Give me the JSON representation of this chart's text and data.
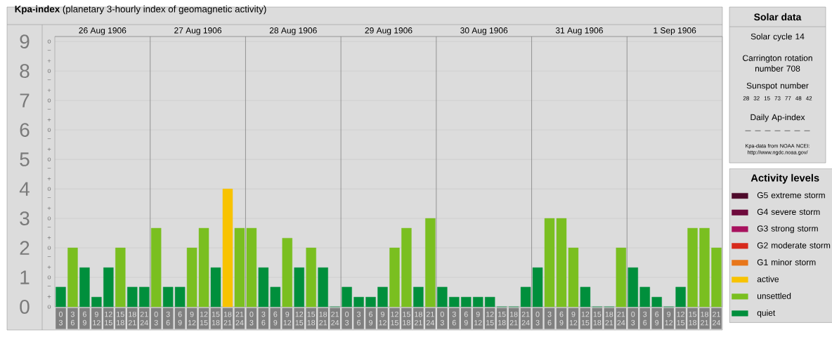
{
  "chart_data": [
    {
      "type": "bar",
      "title": "**Kpa-index**  (planetary 3-hourly index of geomagnetic activity)",
      "categories": [
        "0 3",
        "3 6",
        "6 9",
        "9 12",
        "12 15",
        "15 18",
        "18 21",
        "21 24",
        "0 3",
        "3 6",
        "6 9",
        "9 12",
        "12 15",
        "15 18",
        "18 21",
        "21 24",
        "0 3",
        "3 6",
        "6 9",
        "9 12",
        "12 15",
        "15 18",
        "18 21",
        "21 24",
        "0 3",
        "3 6",
        "6 9",
        "9 12",
        "12 15",
        "15 18",
        "18 21",
        "21 24",
        "0 3",
        "3 6",
        "6 9",
        "9 12",
        "12 15",
        "15 18",
        "18 21",
        "21 24",
        "0 3",
        "3 6",
        "6 9",
        "9 12",
        "12 15",
        "15 18",
        "18 21",
        "21 24",
        "0 3",
        "3 6",
        "6 9",
        "9 12",
        "12 15",
        "15 18",
        "18 21",
        "21 24"
      ],
      "series": [
        {
          "name": "G5 extreme storm",
          "color": "#4d0a2a",
          "values": [
            null,
            null,
            null,
            null,
            null,
            null,
            null,
            null,
            null,
            null,
            null,
            null,
            null,
            null,
            null,
            null,
            null,
            null,
            null,
            null,
            null,
            null,
            null,
            null,
            null,
            null,
            null,
            null,
            null,
            null,
            null,
            null,
            null,
            null,
            null,
            null,
            null,
            null,
            null,
            null,
            null,
            null,
            null,
            null,
            null,
            null,
            null,
            null,
            null,
            null,
            null,
            null,
            null,
            null,
            null,
            null
          ]
        },
        {
          "name": "G4 severe storm",
          "color": "#6e0a3c",
          "values": [
            null,
            null,
            null,
            null,
            null,
            null,
            null,
            null,
            null,
            null,
            null,
            null,
            null,
            null,
            null,
            null,
            null,
            null,
            null,
            null,
            null,
            null,
            null,
            null,
            null,
            null,
            null,
            null,
            null,
            null,
            null,
            null,
            null,
            null,
            null,
            null,
            null,
            null,
            null,
            null,
            null,
            null,
            null,
            null,
            null,
            null,
            null,
            null,
            null,
            null,
            null,
            null,
            null,
            null,
            null,
            null
          ]
        },
        {
          "name": "G3 strong storm",
          "color": "#a8125e",
          "values": [
            null,
            null,
            null,
            null,
            null,
            null,
            null,
            null,
            null,
            null,
            null,
            null,
            null,
            null,
            null,
            null,
            null,
            null,
            null,
            null,
            null,
            null,
            null,
            null,
            null,
            null,
            null,
            null,
            null,
            null,
            null,
            null,
            null,
            null,
            null,
            null,
            null,
            null,
            null,
            null,
            null,
            null,
            null,
            null,
            null,
            null,
            null,
            null,
            null,
            null,
            null,
            null,
            null,
            null,
            null,
            null
          ]
        },
        {
          "name": "G2 moderate storm",
          "color": "#d72a1c",
          "values": [
            null,
            null,
            null,
            null,
            null,
            null,
            null,
            null,
            null,
            null,
            null,
            null,
            null,
            null,
            null,
            null,
            null,
            null,
            null,
            null,
            null,
            null,
            null,
            null,
            null,
            null,
            null,
            null,
            null,
            null,
            null,
            null,
            null,
            null,
            null,
            null,
            null,
            null,
            null,
            null,
            null,
            null,
            null,
            null,
            null,
            null,
            null,
            null,
            null,
            null,
            null,
            null,
            null,
            null,
            null,
            null
          ]
        },
        {
          "name": "G1 minor storm",
          "color": "#e8761a",
          "values": [
            null,
            null,
            null,
            null,
            null,
            null,
            null,
            null,
            null,
            null,
            null,
            null,
            null,
            null,
            null,
            null,
            null,
            null,
            null,
            null,
            null,
            null,
            null,
            null,
            null,
            null,
            null,
            null,
            null,
            null,
            null,
            null,
            null,
            null,
            null,
            null,
            null,
            null,
            null,
            null,
            null,
            null,
            null,
            null,
            null,
            null,
            null,
            null,
            null,
            null,
            null,
            null,
            null,
            null,
            null,
            null
          ]
        },
        {
          "name": "active",
          "color": "#f8c300",
          "values": [
            null,
            null,
            null,
            null,
            null,
            null,
            null,
            null,
            null,
            null,
            null,
            null,
            null,
            null,
            4,
            null,
            null,
            null,
            null,
            null,
            null,
            null,
            null,
            null,
            null,
            null,
            null,
            null,
            null,
            null,
            null,
            null,
            null,
            null,
            null,
            null,
            null,
            null,
            null,
            null,
            null,
            null,
            null,
            null,
            null,
            null,
            null,
            null,
            null,
            null,
            null,
            null,
            null,
            null,
            null,
            null
          ]
        },
        {
          "name": "unsettled",
          "color": "#7abf20",
          "values": [
            null,
            2,
            null,
            null,
            null,
            2,
            null,
            null,
            2.67,
            null,
            null,
            2,
            2.67,
            null,
            null,
            2.67,
            2.67,
            null,
            null,
            2.33,
            null,
            2,
            null,
            null,
            null,
            null,
            null,
            null,
            2,
            2.67,
            null,
            3,
            null,
            null,
            null,
            null,
            null,
            null,
            null,
            null,
            null,
            3,
            3,
            2,
            null,
            null,
            null,
            2,
            null,
            null,
            null,
            null,
            null,
            2.67,
            2.67,
            2
          ]
        },
        {
          "name": "quiet",
          "color": "#008f3c",
          "values": [
            0.67,
            null,
            1.33,
            0.33,
            1.33,
            null,
            0.67,
            0.67,
            null,
            0.67,
            0.67,
            null,
            null,
            1.33,
            null,
            null,
            null,
            1.33,
            0.67,
            null,
            1.33,
            null,
            1.33,
            0,
            0.67,
            0.33,
            0.33,
            0.67,
            null,
            null,
            0.67,
            null,
            0.67,
            0.33,
            0.33,
            0.33,
            0.33,
            0,
            0,
            0.67,
            1.33,
            null,
            null,
            null,
            0.67,
            0,
            0,
            null,
            1.33,
            0.67,
            0.33,
            0,
            0.67,
            null,
            null,
            null
          ]
        }
      ],
      "ylim": [
        0,
        9.17
      ],
      "yticks": [
        0,
        1,
        2,
        3,
        4,
        5,
        6,
        7,
        8,
        9
      ],
      "annotations": [
        "o",
        "+",
        "−",
        "o",
        "+",
        "−",
        "o",
        "+",
        "−",
        "o",
        "+",
        "−",
        "o",
        "+",
        "−",
        "o",
        "+",
        "−",
        "o",
        "+",
        "−",
        "o",
        "+",
        "−",
        "o",
        "+",
        "−",
        "o"
      ],
      "x2lim": [
        "1906-08-26",
        "1906-09-02"
      ],
      "x2ticks": [
        {
          "value": "1906-08-26T12:00",
          "label": "26 Aug 1906"
        },
        {
          "value": "1906-08-27",
          "label": null
        },
        {
          "value": "1906-08-27T12:00",
          "label": "27 Aug 1906"
        },
        {
          "value": "1906-08-28",
          "label": null
        },
        {
          "value": "1906-08-28T12:00",
          "label": "28 Aug 1906"
        },
        {
          "value": "1906-08-29",
          "label": null
        },
        {
          "value": "1906-08-29T12:00",
          "label": "29 Aug 1906"
        },
        {
          "value": "1906-08-30",
          "label": null
        },
        {
          "value": "1906-08-30T12:00",
          "label": "30 Aug 1906"
        },
        {
          "value": "1906-08-31",
          "label": null
        },
        {
          "value": "1906-08-31T12:00",
          "label": "31 Aug 1906"
        },
        {
          "value": "1906-09-01",
          "label": null
        },
        {
          "value": "1906-09-01T12:00",
          "label": "1 Sep 1906"
        }
      ],
      "grid": true,
      "legend": "right",
      "legend_title": "Activity levels"
    },
    {
      "type": "other",
      "title": "Solar data",
      "annotations": [
        "Solar cycle 14",
        "Carrington rotation number 708",
        "Sunspot number",
        "28 32 15 73 77 48 42",
        "Daily Ap-index",
        "— — — — — — —",
        "Kpa-data from NOAA NCEI: http://www.ngdc.noaa.gov/"
      ]
    }
  ]
}
